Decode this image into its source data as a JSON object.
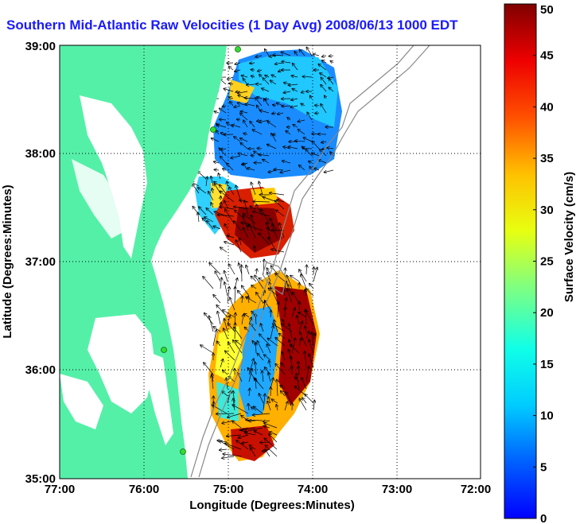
{
  "title": "Southern Mid-Atlantic Raw Velocities (1 Day Avg) 2008/06/13 1000 EDT",
  "map": {
    "x_ticks": [
      "77:00",
      "76:00",
      "75:00",
      "74:00",
      "73:00",
      "72:00"
    ],
    "y_ticks": [
      "39:00",
      "38:00",
      "37:00",
      "36:00",
      "35:00"
    ],
    "xlabel": "Longitude (Degrees:Minutes)",
    "ylabel": "Latitude (Degrees:Minutes)",
    "lon_range": [
      -77,
      -72
    ],
    "lat_range": [
      35,
      39
    ],
    "land_color": "#55f0a8",
    "grid": "dotted"
  },
  "colorbar": {
    "label": "Surface Velocity (cm/s)",
    "ticks": [
      "0",
      "5",
      "10",
      "15",
      "20",
      "25",
      "30",
      "35",
      "40",
      "45",
      "50"
    ],
    "range": [
      0,
      50
    ],
    "colormap": "jet"
  },
  "station_markers": {
    "count": 4,
    "color": "#22dd22"
  }
}
